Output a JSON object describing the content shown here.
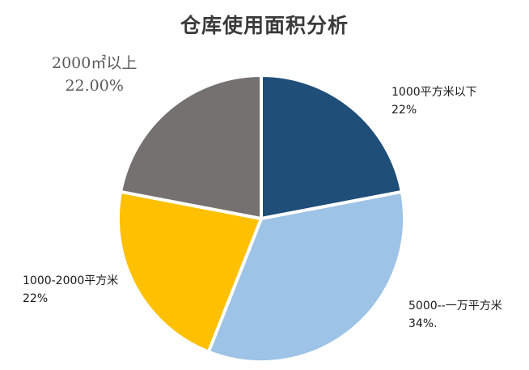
{
  "chart_data": {
    "type": "pie",
    "title": "仓库使用面积分析",
    "slices": [
      {
        "name": "1000平方米以下",
        "value": 22,
        "label_value": "22%",
        "color": "#1f4e79"
      },
      {
        "name": "5000--一万平方米",
        "value": 34,
        "label_value": "34%.",
        "color": "#9dc3e6"
      },
      {
        "name": "1000-2000平方米",
        "value": 22,
        "label_value": "22%",
        "color": "#ffc000"
      },
      {
        "name": "2000㎡以上",
        "value": 22,
        "label_value": "22.00%",
        "color": "#767171"
      }
    ]
  }
}
